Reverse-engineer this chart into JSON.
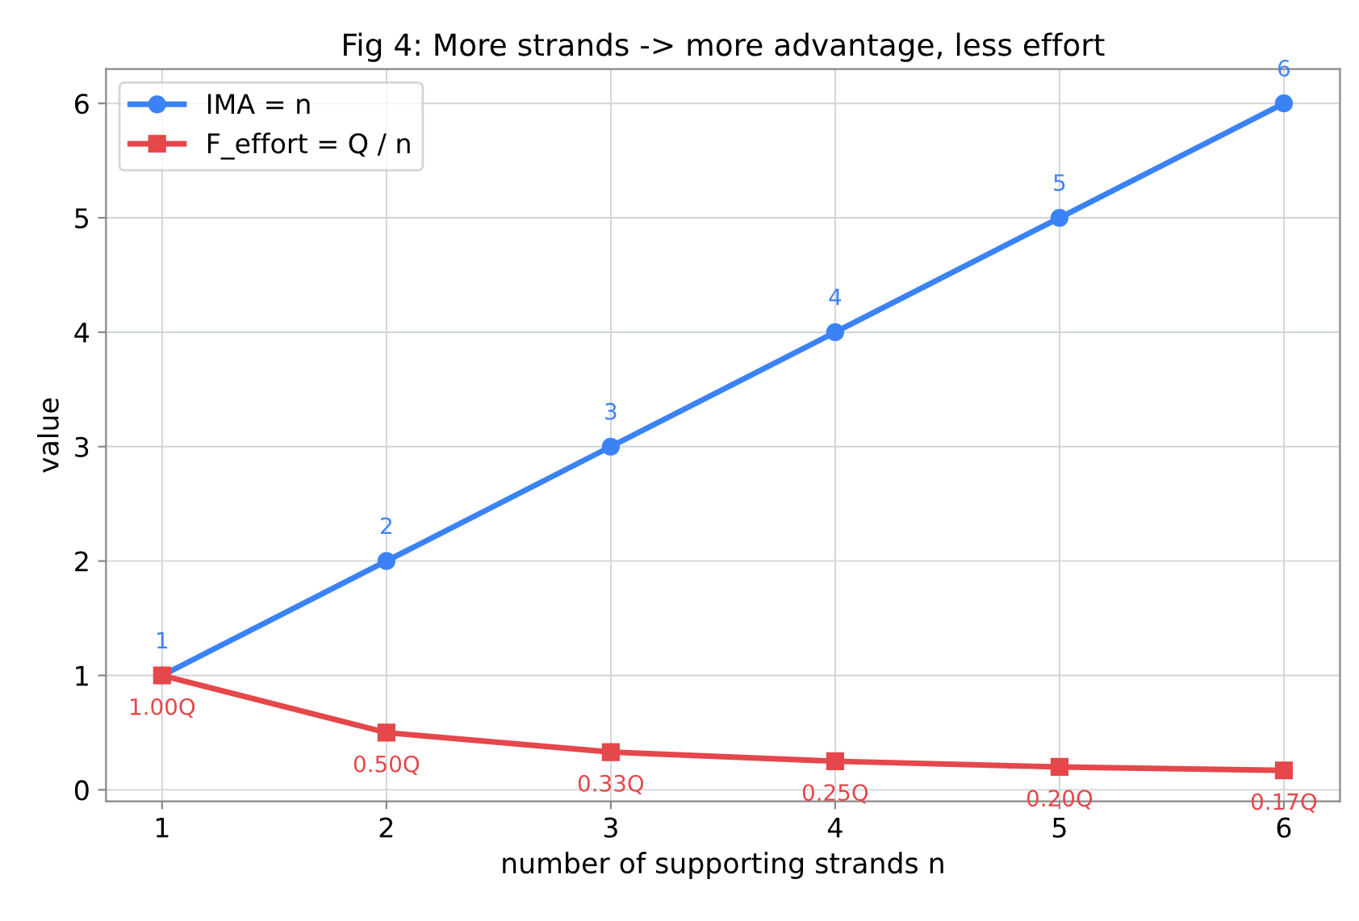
{
  "chart_data": {
    "type": "line",
    "title": "Fig 4: More strands -> more advantage, less effort",
    "xlabel": "number of supporting strands n",
    "ylabel": "value",
    "x": [
      1,
      2,
      3,
      4,
      5,
      6
    ],
    "series": [
      {
        "name": "IMA = n",
        "color": "#3b82f6",
        "marker": "circle",
        "values": [
          1,
          2,
          3,
          4,
          5,
          6
        ],
        "value_labels": [
          "1",
          "2",
          "3",
          "4",
          "5",
          "6"
        ]
      },
      {
        "name": "F_effort = Q / n",
        "color": "#e5474b",
        "marker": "square",
        "values": [
          1.0,
          0.5,
          0.33,
          0.25,
          0.2,
          0.17
        ],
        "value_labels": [
          "1.00Q",
          "0.50Q",
          "0.33Q",
          "0.25Q",
          "0.20Q",
          "0.17Q"
        ]
      }
    ],
    "xlim": [
      0.75,
      6.25
    ],
    "ylim": [
      -0.1,
      6.3
    ],
    "xticks": [
      1,
      2,
      3,
      4,
      5,
      6
    ],
    "yticks": [
      0,
      1,
      2,
      3,
      4,
      5,
      6
    ],
    "grid": true,
    "legend": "top left",
    "line_style": "solid"
  }
}
